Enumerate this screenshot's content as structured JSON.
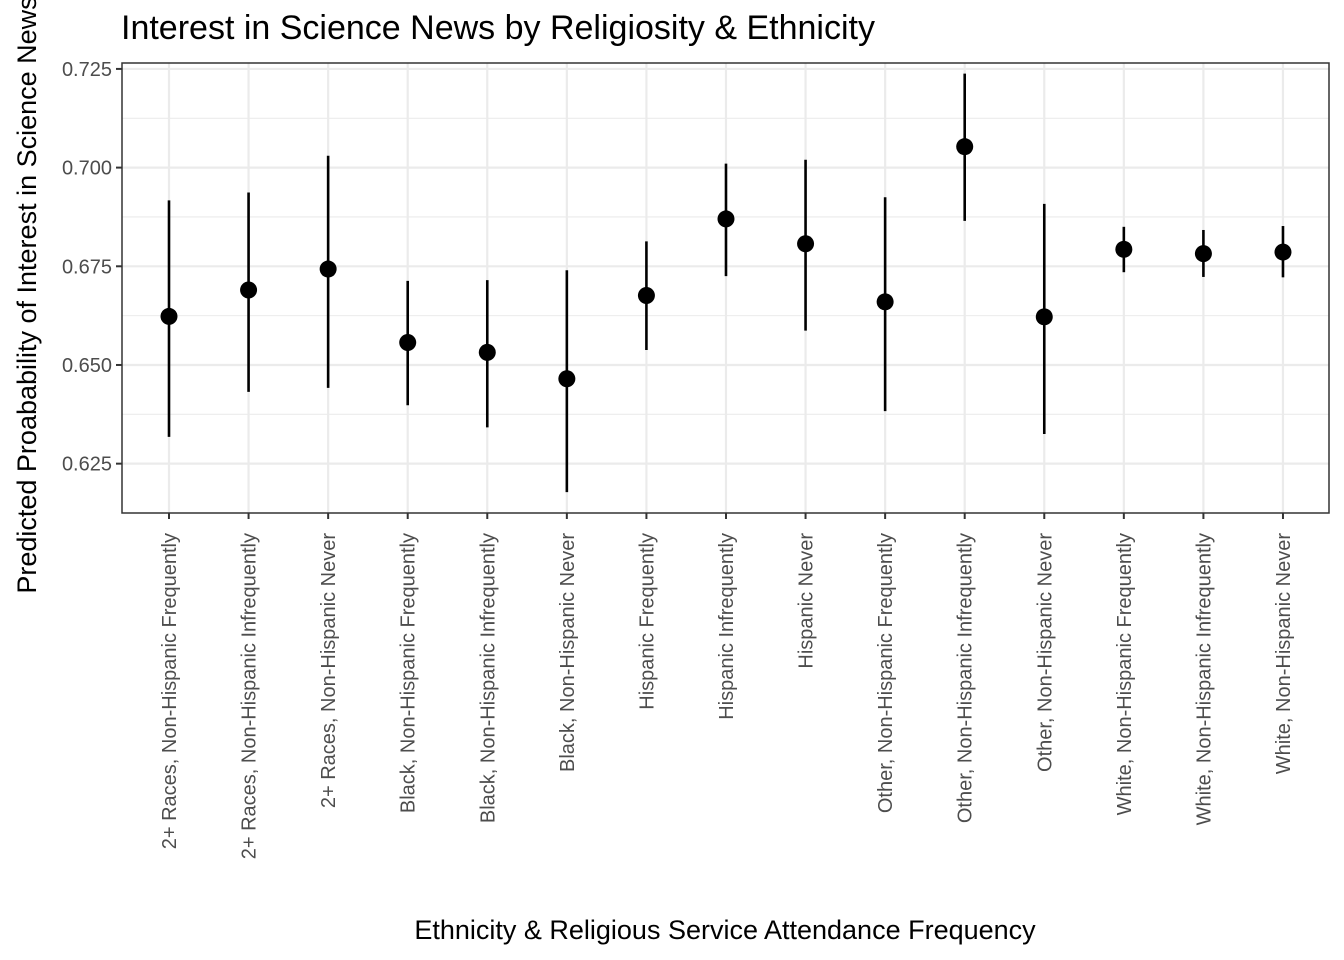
{
  "chart_data": {
    "type": "scatter",
    "title": "Interest in Science News by Religiosity & Ethnicity",
    "xlabel": "Ethnicity & Religious Service Attendance Frequency",
    "ylabel": "Predicted Proabability of Interest in Science News",
    "ylim": [
      0.6125,
      0.7265
    ],
    "yticks": [
      "0.625",
      "0.650",
      "0.675",
      "0.700",
      "0.725"
    ],
    "grid": true,
    "categories": [
      "2+ Races, Non-Hispanic Frequently",
      "2+ Races, Non-Hispanic Infrequently",
      "2+ Races, Non-Hispanic Never",
      "Black, Non-Hispanic Frequently",
      "Black, Non-Hispanic Infrequently",
      "Black, Non-Hispanic Never",
      "Hispanic Frequently",
      "Hispanic Infrequently",
      "Hispanic Never",
      "Other, Non-Hispanic Frequently",
      "Other, Non-Hispanic Infrequently",
      "Other, Non-Hispanic Never",
      "White, Non-Hispanic Frequently",
      "White, Non-Hispanic Infrequently",
      "White, Non-Hispanic Never"
    ],
    "values": [
      0.6623,
      0.669,
      0.6743,
      0.6557,
      0.6532,
      0.6465,
      0.6676,
      0.687,
      0.6807,
      0.666,
      0.7053,
      0.6622,
      0.6793,
      0.6782,
      0.6786
    ],
    "lower": [
      0.6318,
      0.6432,
      0.6442,
      0.6398,
      0.6342,
      0.6178,
      0.6538,
      0.6725,
      0.6587,
      0.6383,
      0.6865,
      0.6325,
      0.6735,
      0.6723,
      0.6722
    ],
    "upper": [
      0.6917,
      0.6937,
      0.703,
      0.6713,
      0.6715,
      0.674,
      0.6813,
      0.701,
      0.702,
      0.6925,
      0.7238,
      0.6908,
      0.685,
      0.6842,
      0.6852
    ]
  }
}
